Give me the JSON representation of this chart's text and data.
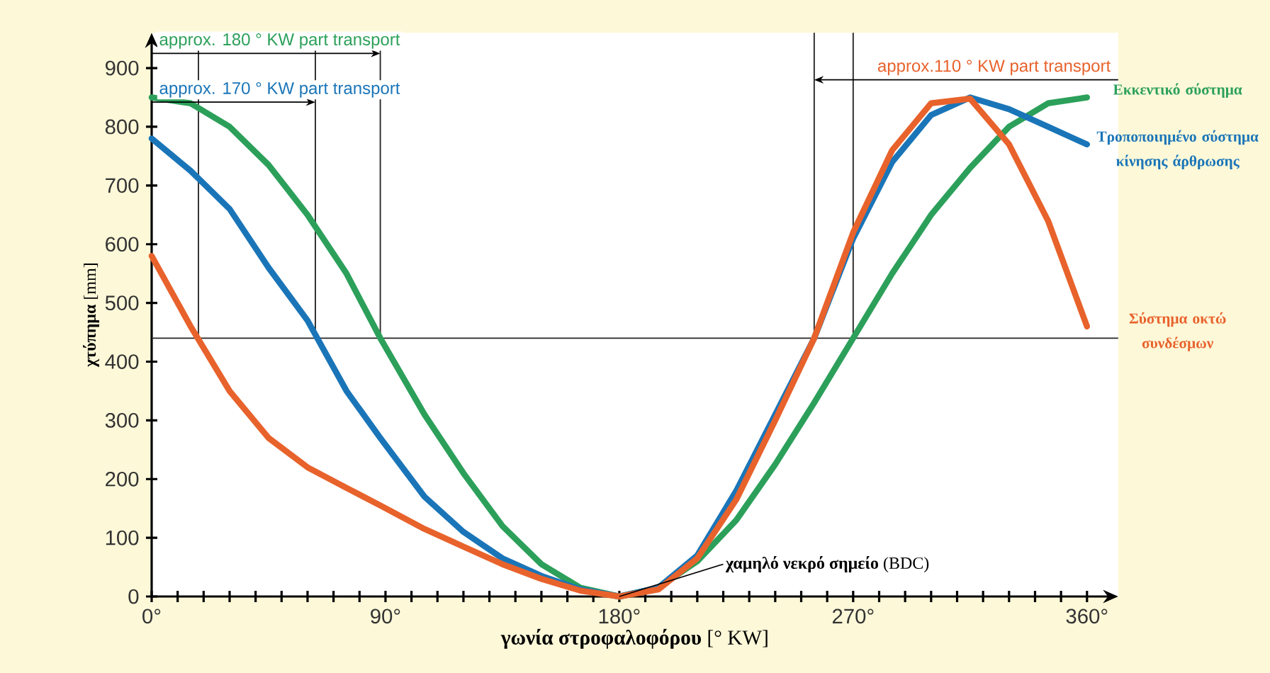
{
  "chart_data": {
    "type": "line",
    "xlabel": "**γωνία στροφαλοφόρου** [° KW]",
    "ylabel": "**χτύπημα** [mm]",
    "x": [
      0,
      15,
      30,
      45,
      60,
      75,
      88,
      105,
      120,
      135,
      150,
      165,
      180,
      195,
      210,
      225,
      240,
      255,
      270,
      285,
      300,
      315,
      330,
      345,
      360
    ],
    "series": [
      {
        "name": "Εκκεντικό σύστημα",
        "color": "#2ca05a",
        "values": [
          850,
          840,
          800,
          735,
          650,
          550,
          440,
          310,
          210,
          120,
          55,
          15,
          0,
          15,
          60,
          130,
          225,
          330,
          440,
          550,
          650,
          730,
          800,
          840,
          850
        ]
      },
      {
        "name": "Τροποποιημένο σύστημα κίνησης άρθρωσης",
        "color": "#1a75b8",
        "values": [
          780,
          725,
          660,
          560,
          470,
          350,
          270,
          170,
          110,
          65,
          35,
          12,
          0,
          15,
          70,
          180,
          310,
          440,
          610,
          740,
          820,
          850,
          830,
          800,
          770
        ]
      },
      {
        "name": "Σύστημα οκτώ συνδέσμων",
        "color": "#e8622c",
        "values": [
          580,
          460,
          350,
          270,
          220,
          185,
          155,
          115,
          85,
          55,
          30,
          10,
          0,
          12,
          65,
          165,
          300,
          440,
          620,
          760,
          840,
          848,
          770,
          640,
          460
        ]
      }
    ],
    "xlim": [
      0,
      372
    ],
    "ylim": [
      0,
      960
    ],
    "xticks": [
      {
        "value": 0,
        "label": "0°"
      },
      {
        "value": 10,
        "label": null
      },
      {
        "value": 20,
        "label": null
      },
      {
        "value": 30,
        "label": null
      },
      {
        "value": 40,
        "label": null
      },
      {
        "value": 50,
        "label": null
      },
      {
        "value": 60,
        "label": null
      },
      {
        "value": 70,
        "label": null
      },
      {
        "value": 80,
        "label": null
      },
      {
        "value": 90,
        "label": "90°"
      },
      {
        "value": 100,
        "label": null
      },
      {
        "value": 110,
        "label": null
      },
      {
        "value": 120,
        "label": null
      },
      {
        "value": 130,
        "label": null
      },
      {
        "value": 140,
        "label": null
      },
      {
        "value": 150,
        "label": null
      },
      {
        "value": 160,
        "label": null
      },
      {
        "value": 170,
        "label": null
      },
      {
        "value": 180,
        "label": "180°"
      },
      {
        "value": 190,
        "label": null
      },
      {
        "value": 200,
        "label": null
      },
      {
        "value": 210,
        "label": null
      },
      {
        "value": 220,
        "label": null
      },
      {
        "value": 230,
        "label": null
      },
      {
        "value": 240,
        "label": null
      },
      {
        "value": 250,
        "label": null
      },
      {
        "value": 260,
        "label": null
      },
      {
        "value": 270,
        "label": "270°"
      },
      {
        "value": 280,
        "label": null
      },
      {
        "value": 290,
        "label": null
      },
      {
        "value": 300,
        "label": null
      },
      {
        "value": 310,
        "label": null
      },
      {
        "value": 320,
        "label": null
      },
      {
        "value": 330,
        "label": null
      },
      {
        "value": 340,
        "label": null
      },
      {
        "value": 350,
        "label": null
      },
      {
        "value": 360,
        "label": "360°"
      }
    ],
    "yticks": [
      0,
      100,
      200,
      300,
      400,
      500,
      600,
      700,
      800,
      900
    ],
    "ref_lines": [
      {
        "axis": "y",
        "value": 440
      },
      {
        "axis": "x",
        "value": 18
      },
      {
        "axis": "x",
        "value": 88
      },
      {
        "axis": "x",
        "value": 63
      },
      {
        "axis": "x",
        "value": 255
      },
      {
        "axis": "x",
        "value": 270
      }
    ],
    "annotations": [
      {
        "text": "approx. 180 ° KW part transport",
        "x": 88,
        "y": 925
      },
      {
        "text": "approx. 170 ° KW part transport",
        "x": 63,
        "y": 842
      },
      {
        "text": "approx.110 ° KW part transport",
        "x": 255,
        "y": 880
      },
      {
        "text": "**χαμηλό νεκρό σημείο** (BDC)",
        "x": 180,
        "y": 0
      }
    ],
    "legend": "right",
    "grid": false,
    "marker": "none",
    "line_style": "solid"
  }
}
